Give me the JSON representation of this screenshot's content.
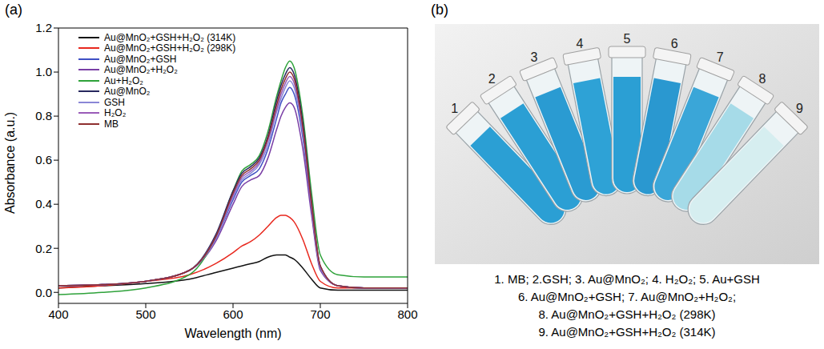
{
  "panel_labels": [
    "(a)",
    "(b)"
  ],
  "chart_data": {
    "type": "line",
    "x_label": "Wavelength (nm)",
    "y_label": "Absorbance (a.u.)",
    "xlim": [
      400,
      800
    ],
    "xticks": [
      400,
      500,
      600,
      700,
      800
    ],
    "ylim": [
      -0.05,
      1.2
    ],
    "yticks": [
      {
        "value": 0,
        "label": "0.0"
      },
      {
        "value": 0.2,
        "label": "0.2"
      },
      {
        "value": 0.4,
        "label": "0.4"
      },
      {
        "value": 0.6,
        "label": "0.6"
      },
      {
        "value": 0.8,
        "label": "0.8"
      },
      {
        "value": 1.0,
        "label": "1.0"
      },
      {
        "value": 1.2,
        "label": "1.2"
      }
    ],
    "grid": false,
    "legend": "upper left",
    "x": [
      400,
      450,
      500,
      550,
      580,
      600,
      610,
      620,
      630,
      640,
      650,
      655,
      660,
      665,
      670,
      680,
      690,
      700,
      720,
      750,
      800
    ],
    "series": [
      {
        "name": "Au@MnO₂+GSH+H₂O₂ (314K)",
        "color": "#111111",
        "values": [
          0.02,
          0.03,
          0.04,
          0.06,
          0.09,
          0.11,
          0.12,
          0.13,
          0.14,
          0.16,
          0.17,
          0.17,
          0.17,
          0.16,
          0.15,
          0.11,
          0.06,
          0.02,
          0.01,
          0.01,
          0.01
        ]
      },
      {
        "name": "Au@MnO₂+GSH+H₂O₂ (298K)",
        "color": "#e8281e",
        "values": [
          0.02,
          0.03,
          0.05,
          0.08,
          0.13,
          0.18,
          0.21,
          0.23,
          0.26,
          0.3,
          0.34,
          0.35,
          0.35,
          0.34,
          0.32,
          0.24,
          0.13,
          0.05,
          0.02,
          0.02,
          0.02
        ]
      },
      {
        "name": "Au@MnO₂+GSH",
        "color": "#3f4fc4",
        "values": [
          0.03,
          0.035,
          0.05,
          0.1,
          0.24,
          0.42,
          0.5,
          0.53,
          0.56,
          0.65,
          0.79,
          0.86,
          0.9,
          0.93,
          0.9,
          0.7,
          0.37,
          0.11,
          0.03,
          0.02,
          0.02
        ]
      },
      {
        "name": "Au@MnO₂+H₂O₂",
        "color": "#7a3fa6",
        "values": [
          0.03,
          0.035,
          0.05,
          0.1,
          0.23,
          0.4,
          0.48,
          0.51,
          0.53,
          0.61,
          0.74,
          0.8,
          0.84,
          0.86,
          0.84,
          0.65,
          0.35,
          0.1,
          0.03,
          0.02,
          0.02
        ]
      },
      {
        "name": "Au+H₂O₂",
        "color": "#2ea23a",
        "values": [
          -0.01,
          0.0,
          0.02,
          0.08,
          0.25,
          0.46,
          0.55,
          0.58,
          0.62,
          0.73,
          0.89,
          0.96,
          1.02,
          1.05,
          1.02,
          0.8,
          0.45,
          0.17,
          0.08,
          0.07,
          0.07
        ]
      },
      {
        "name": "Au@MnO₂",
        "color": "#27285e",
        "values": [
          0.03,
          0.035,
          0.05,
          0.1,
          0.26,
          0.46,
          0.54,
          0.57,
          0.61,
          0.71,
          0.87,
          0.94,
          0.99,
          1.02,
          0.99,
          0.77,
          0.41,
          0.12,
          0.03,
          0.02,
          0.02
        ]
      },
      {
        "name": "GSH",
        "color": "#8a86d6",
        "values": [
          0.03,
          0.035,
          0.05,
          0.1,
          0.24,
          0.43,
          0.51,
          0.54,
          0.58,
          0.67,
          0.82,
          0.88,
          0.93,
          0.96,
          0.93,
          0.72,
          0.38,
          0.11,
          0.03,
          0.02,
          0.02
        ]
      },
      {
        "name": "H₂O₂",
        "color": "#9a5cb8",
        "values": [
          0.03,
          0.035,
          0.05,
          0.1,
          0.25,
          0.44,
          0.52,
          0.55,
          0.59,
          0.69,
          0.83,
          0.9,
          0.95,
          0.98,
          0.95,
          0.74,
          0.39,
          0.12,
          0.03,
          0.02,
          0.02
        ]
      },
      {
        "name": "MB",
        "color": "#8e2f2f",
        "values": [
          0.03,
          0.035,
          0.05,
          0.1,
          0.25,
          0.45,
          0.53,
          0.56,
          0.6,
          0.7,
          0.85,
          0.92,
          0.97,
          1.0,
          0.97,
          0.75,
          0.4,
          0.12,
          0.03,
          0.02,
          0.02
        ]
      }
    ]
  },
  "photo": {
    "tubes": [
      {
        "label": "1",
        "color": "#2b9fd4"
      },
      {
        "label": "2",
        "color": "#2b9fd4"
      },
      {
        "label": "3",
        "color": "#2a9bd2"
      },
      {
        "label": "4",
        "color": "#2ea2d6"
      },
      {
        "label": "5",
        "color": "#2b9fd4"
      },
      {
        "label": "6",
        "color": "#2a98d0"
      },
      {
        "label": "7",
        "color": "#3aa6d8"
      },
      {
        "label": "8",
        "color": "#a6dbe8"
      },
      {
        "label": "9",
        "color": "#d6eef0"
      }
    ],
    "caption": [
      "1. MB; 2.GSH; 3. Au@MnO₂; 4. H₂O₂; 5. Au+GSH",
      "6. Au@MnO₂+GSH; 7. Au@MnO₂+H₂O₂;",
      "8. Au@MnO₂+GSH+H₂O₂ (298K)",
      "9. Au@MnO₂+GSH+H₂O₂ (314K)"
    ]
  }
}
